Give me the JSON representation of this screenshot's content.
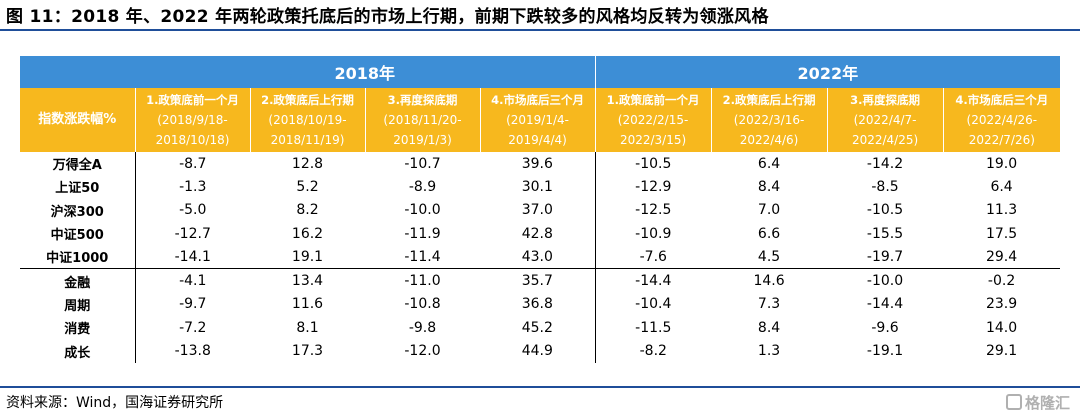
{
  "title": "图 11：2018 年、2022 年两轮政策托底后的市场上行期，前期下跌较多的风格均反转为领涨风格",
  "years": [
    "2018年",
    "2022年"
  ],
  "index_header": "指数涨跌幅%",
  "period_headers": [
    {
      "name": "1.政策底前一个月",
      "range": "(2018/9/18-",
      "range2": "2018/10/18)"
    },
    {
      "name": "2.政策底后上行期",
      "range": "(2018/10/19-",
      "range2": "2018/11/19)"
    },
    {
      "name": "3.再度探底期",
      "range": "(2018/11/20-",
      "range2": "2019/1/3)"
    },
    {
      "name": "4.市场底后三个月",
      "range": "(2019/1/4-",
      "range2": "2019/4/4)"
    },
    {
      "name": "1.政策底前一个月",
      "range": "(2022/2/15-",
      "range2": "2022/3/15)"
    },
    {
      "name": "2.政策底后上行期",
      "range": "(2022/3/16-",
      "range2": "2022/4/6)"
    },
    {
      "name": "3.再度探底期",
      "range": "(2022/4/7-",
      "range2": "2022/4/25)"
    },
    {
      "name": "4.市场底后三个月",
      "range": "(2022/4/26-",
      "range2": "2022/7/26)"
    }
  ],
  "rows": [
    {
      "label": "万得全A",
      "values": [
        "-8.7",
        "12.8",
        "-10.7",
        "39.6",
        "-10.5",
        "6.4",
        "-14.2",
        "19.0"
      ]
    },
    {
      "label": "上证50",
      "values": [
        "-1.3",
        "5.2",
        "-8.9",
        "30.1",
        "-12.9",
        "8.4",
        "-8.5",
        "6.4"
      ]
    },
    {
      "label": "沪深300",
      "values": [
        "-5.0",
        "8.2",
        "-10.0",
        "37.0",
        "-12.5",
        "7.0",
        "-10.5",
        "11.3"
      ]
    },
    {
      "label": "中证500",
      "values": [
        "-12.7",
        "16.2",
        "-11.9",
        "42.8",
        "-10.9",
        "6.6",
        "-15.5",
        "17.5"
      ]
    },
    {
      "label": "中证1000",
      "values": [
        "-14.1",
        "19.1",
        "-11.4",
        "43.0",
        "-7.6",
        "4.5",
        "-19.7",
        "29.4"
      ]
    },
    {
      "label": "金融",
      "values": [
        "-4.1",
        "13.4",
        "-11.0",
        "35.7",
        "-14.4",
        "14.6",
        "-10.0",
        "-0.2"
      ]
    },
    {
      "label": "周期",
      "values": [
        "-9.7",
        "11.6",
        "-10.8",
        "36.8",
        "-10.4",
        "7.3",
        "-14.4",
        "23.9"
      ]
    },
    {
      "label": "消费",
      "values": [
        "-7.2",
        "8.1",
        "-9.8",
        "45.2",
        "-11.5",
        "8.4",
        "-9.6",
        "14.0"
      ]
    },
    {
      "label": "成长",
      "values": [
        "-13.8",
        "17.3",
        "-12.0",
        "44.9",
        "-8.2",
        "1.3",
        "-19.1",
        "29.1"
      ]
    }
  ],
  "source": "资料来源：Wind，国海证券研究所",
  "watermark": "格隆汇"
}
